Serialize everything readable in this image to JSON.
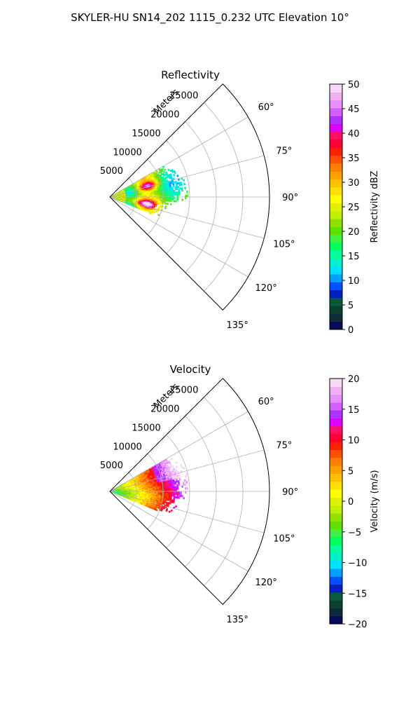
{
  "figure": {
    "title": "SKYLER-HU  SN14_202  1115_0.232 UTC Elevation 10°"
  },
  "chart_data": [
    {
      "type": "heatmap",
      "projection": "polar-sector",
      "title": "Reflectivity",
      "range_label": "Meters",
      "range_ticks": [
        5000,
        10000,
        15000,
        20000,
        25000
      ],
      "range_max": 30000,
      "azimuth_range": [
        45,
        135
      ],
      "azimuth_ticks": [
        "60°",
        "75°",
        "90°",
        "105°",
        "120°",
        "135°"
      ],
      "grid": true,
      "colorbar": {
        "label": "Reflectivity dBZ",
        "min": 0,
        "max": 50,
        "ticks": [
          0,
          5,
          10,
          15,
          20,
          25,
          30,
          35,
          40,
          45,
          50
        ],
        "colors": [
          "#0a0a5a",
          "#0d2a3a",
          "#0b4030",
          "#0a5a3a",
          "#0020c0",
          "#0050ff",
          "#00a0ff",
          "#00e0ff",
          "#00f0c8",
          "#00ff9a",
          "#00ff60",
          "#40f040",
          "#60e000",
          "#90e000",
          "#c0f000",
          "#e0f000",
          "#ffff00",
          "#ffe000",
          "#ffc000",
          "#ffa000",
          "#ff8000",
          "#ff5000",
          "#ff2000",
          "#ff0030",
          "#ff1060",
          "#e000ff",
          "#b030ff",
          "#d060ff",
          "#e890ff",
          "#f0b0f0",
          "#f8d8f8"
        ]
      },
      "field_summary": "Echo region spans ~4–13 km range and azimuths ~60°–112°; cores of 35–45 dBZ near 75° and 100° at ~7 km; 15–25 dBZ elsewhere."
    },
    {
      "type": "heatmap",
      "projection": "polar-sector",
      "title": "Velocity",
      "range_label": "Meters",
      "range_ticks": [
        5000,
        10000,
        15000,
        20000,
        25000
      ],
      "range_max": 30000,
      "azimuth_range": [
        45,
        135
      ],
      "azimuth_ticks": [
        "60°",
        "75°",
        "90°",
        "105°",
        "120°",
        "135°"
      ],
      "grid": true,
      "colorbar": {
        "label": "Velocity (m/s)",
        "min": -20,
        "max": 20,
        "ticks": [
          -20,
          -15,
          -10,
          -5,
          0,
          5,
          10,
          15,
          20
        ],
        "colors": [
          "#0a0a5a",
          "#0d2a3a",
          "#0b4030",
          "#0a5a3a",
          "#0020c0",
          "#0050ff",
          "#00a0ff",
          "#00e0ff",
          "#00f0c8",
          "#00ff9a",
          "#00ff60",
          "#40f040",
          "#60e000",
          "#90e000",
          "#c0f000",
          "#e0f000",
          "#ffff00",
          "#ffe000",
          "#ffc000",
          "#ffa000",
          "#ff8000",
          "#ff5000",
          "#ff2000",
          "#ff0030",
          "#ff1060",
          "#e000ff",
          "#b030ff",
          "#d060ff",
          "#e890ff",
          "#f0b0f0",
          "#f8d8f8"
        ]
      },
      "field_summary": "Near radar ~-8 to -5 m/s (green/cyan), increasing outward through 0–5 m/s (yellow/orange) to 8–12 m/s (red) and 15 m/s (magenta) at ~10–13 km."
    }
  ]
}
